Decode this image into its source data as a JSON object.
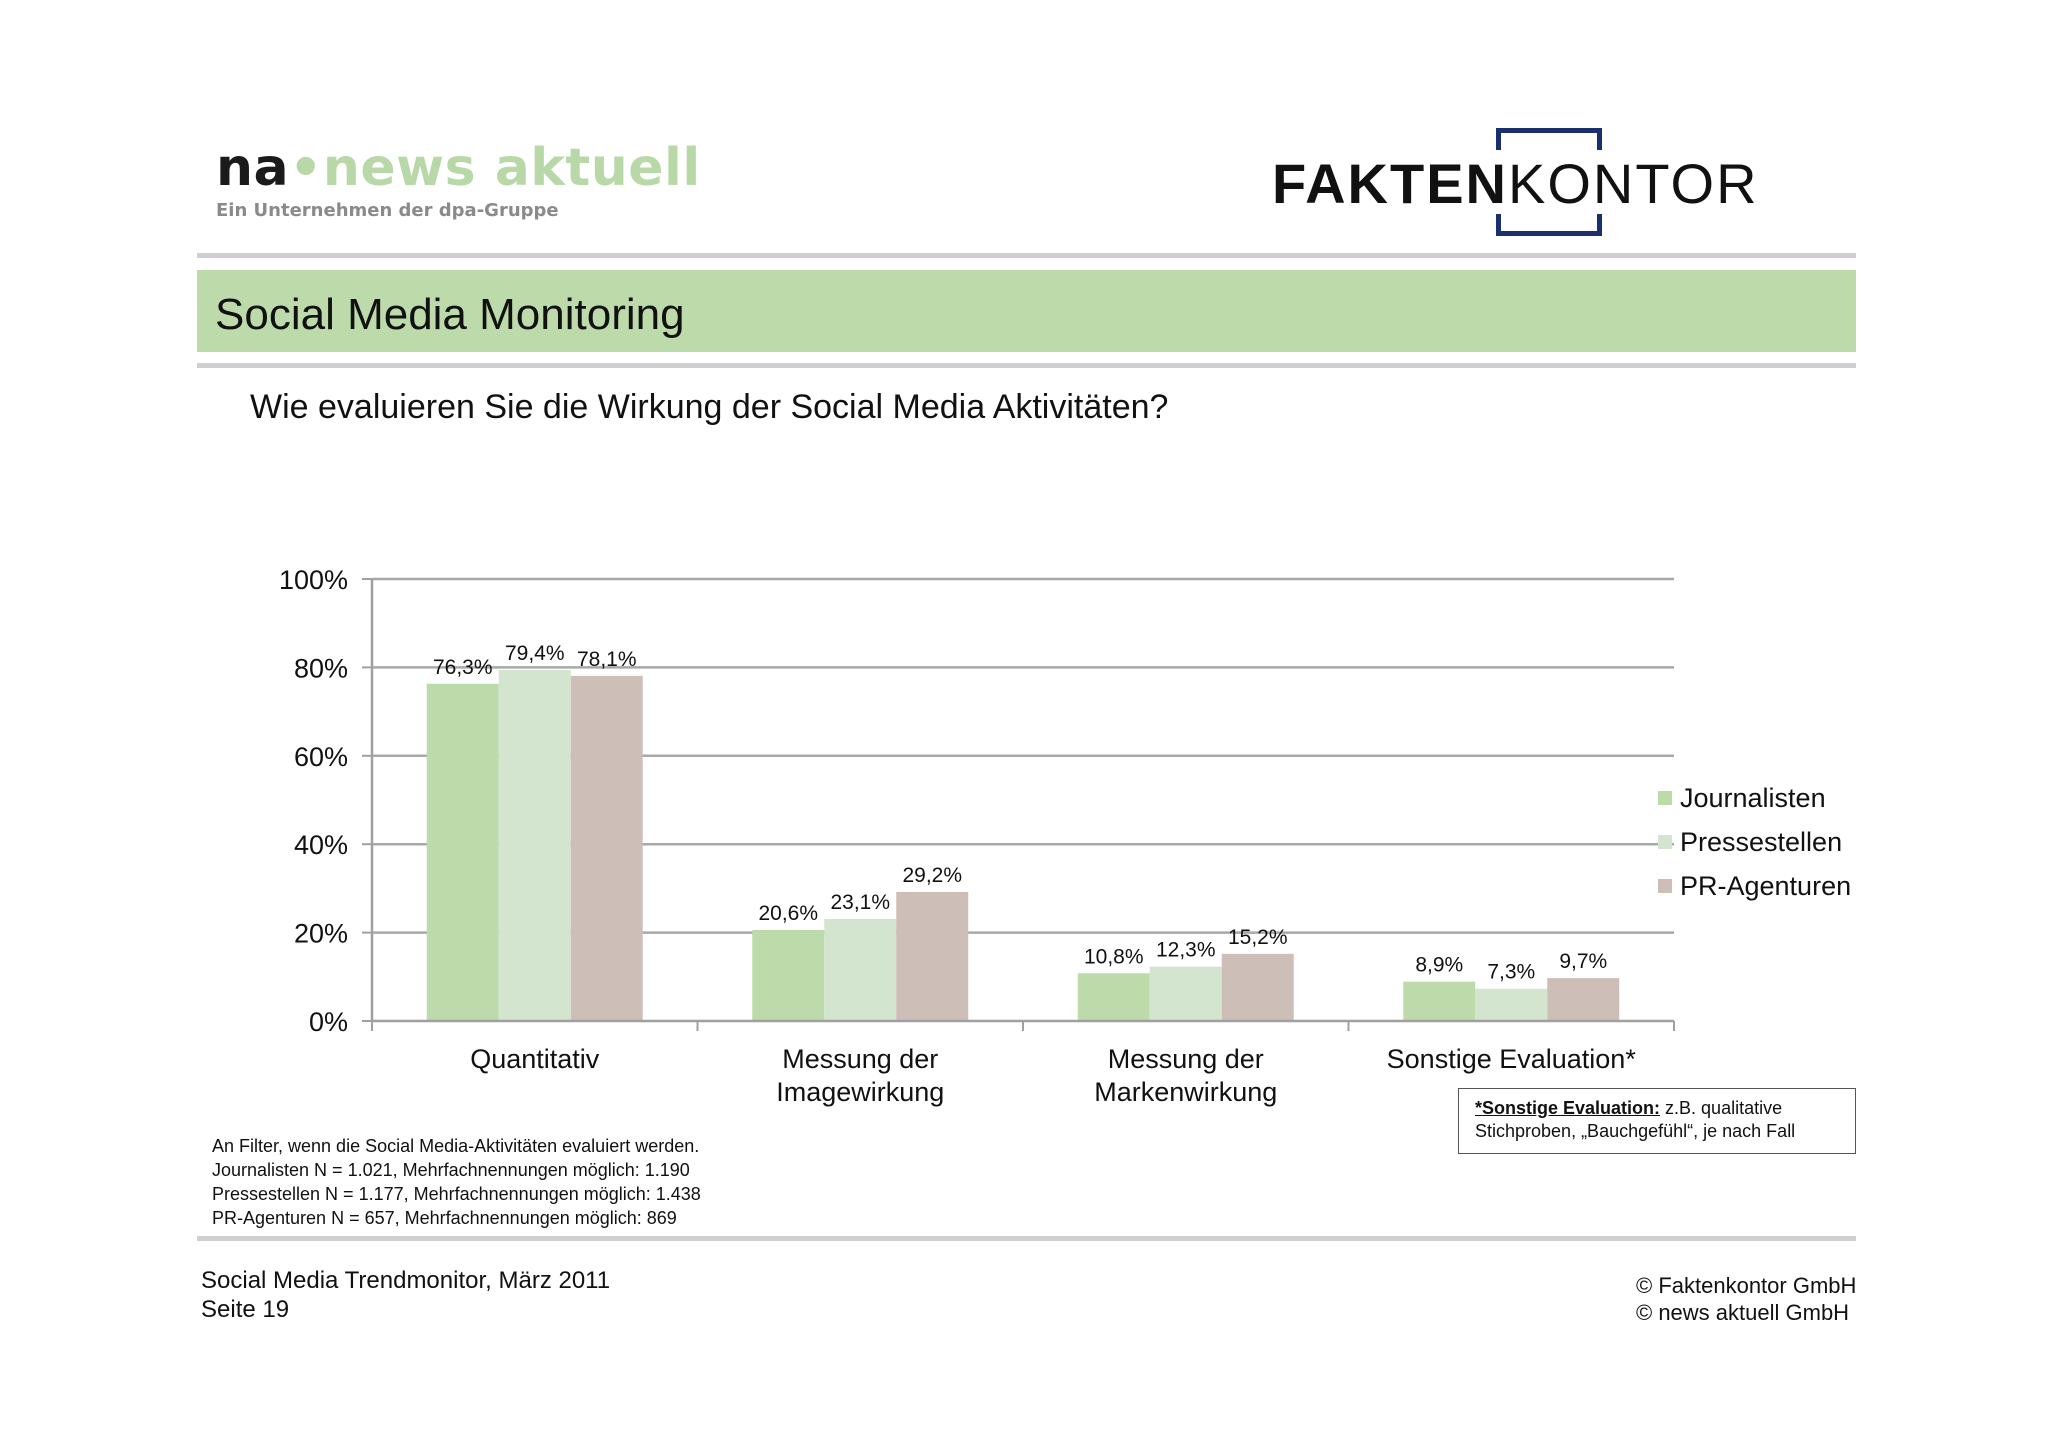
{
  "logos": {
    "news_aktuell": {
      "prefix": "na",
      "name": "news aktuell",
      "tagline": "Ein Unternehmen der dpa-Gruppe"
    },
    "faktenkontor": {
      "bold_part": "FAKTEN",
      "light_part": "KONTOR"
    }
  },
  "title": "Social Media Monitoring",
  "question": "Wie evaluieren Sie die Wirkung der Social Media Aktivitäten?",
  "colors": {
    "title_band": "#bddbaa",
    "journalisten": "#bddbaa",
    "pressestellen": "#d3e5ce",
    "pr_agenturen": "#cdbfb8",
    "faktenkontor_frame": "#1a2f6e"
  },
  "chart_data": {
    "type": "bar",
    "categories": [
      [
        "Quantitativ"
      ],
      [
        "Messung der",
        "Imagewirkung"
      ],
      [
        "Messung der",
        "Markenwirkung"
      ],
      [
        "Sonstige Evaluation*"
      ]
    ],
    "series": [
      {
        "name": "Journalisten",
        "color": "#bddbaa",
        "values": [
          76.3,
          20.6,
          10.8,
          8.9
        ],
        "labels": [
          "76,3%",
          "20,6%",
          "10,8%",
          "8,9%"
        ]
      },
      {
        "name": "Pressestellen",
        "color": "#d3e5ce",
        "values": [
          79.4,
          23.1,
          12.3,
          7.3
        ],
        "labels": [
          "79,4%",
          "23,1%",
          "12,3%",
          "7,3%"
        ]
      },
      {
        "name": "PR-Agenturen",
        "color": "#cdbfb8",
        "values": [
          78.1,
          29.2,
          15.2,
          9.7
        ],
        "labels": [
          "78,1%",
          "29,2%",
          "15,2%",
          "9,7%"
        ]
      }
    ],
    "ylim": [
      0,
      100
    ],
    "yticks": [
      0,
      20,
      40,
      60,
      80,
      100
    ],
    "ytick_labels": [
      "0%",
      "20%",
      "40%",
      "60%",
      "80%",
      "100%"
    ],
    "grid": true,
    "legend": "right"
  },
  "note": {
    "label": "*Sonstige Evaluation:",
    "text_line1": " z.B. qualitative",
    "text_line2": "Stichproben, „Bauchgefühl“, je nach Fall"
  },
  "base": [
    "An Filter, wenn die Social Media-Aktivitäten evaluiert werden.",
    "Journalisten N = 1.021, Mehrfachnennungen möglich: 1.190",
    "Pressestellen N = 1.177, Mehrfachnennungen möglich: 1.438",
    "PR-Agenturen N = 657, Mehrfachnennungen möglich: 869"
  ],
  "footer": {
    "left": [
      "Social Media Trendmonitor, März 2011",
      "Seite 19"
    ],
    "right": [
      "© Faktenkontor GmbH",
      "© news aktuell GmbH"
    ]
  }
}
